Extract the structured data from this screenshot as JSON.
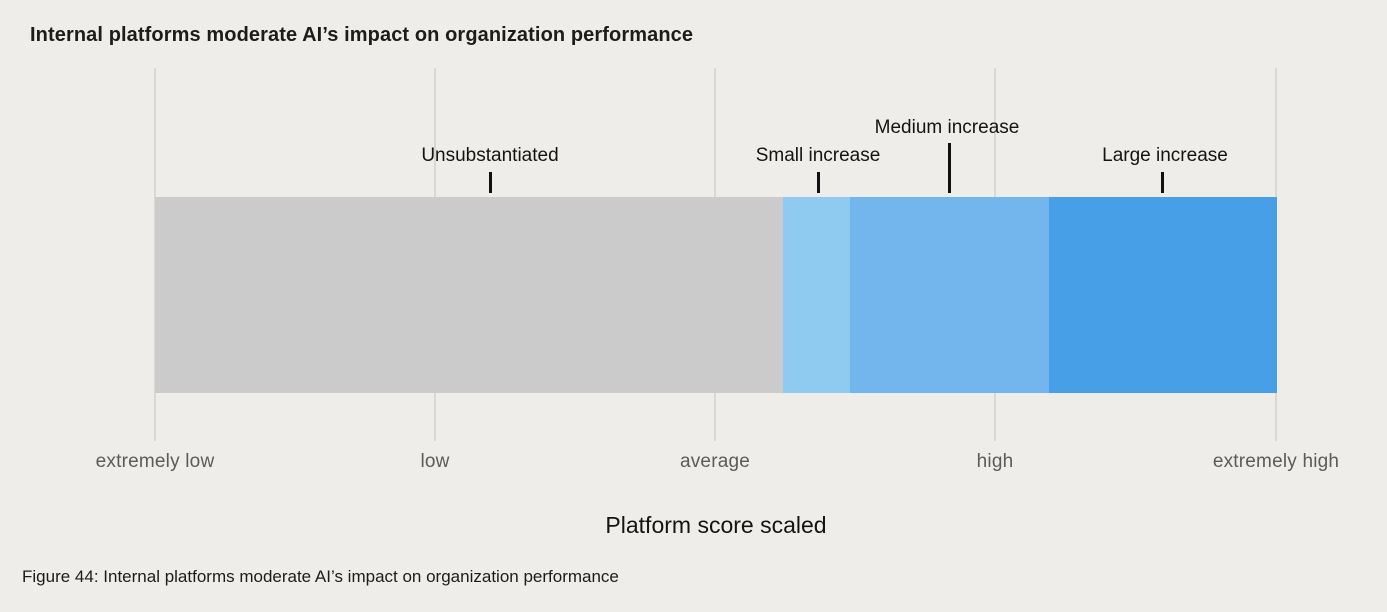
{
  "page": {
    "background": "#EEEDE9"
  },
  "chart": {
    "title": "Internal platforms moderate AI’s impact on organization performance",
    "annotations": [
      {
        "label": "Unsubstantiated"
      },
      {
        "label": "Small increase"
      },
      {
        "label": "Medium increase"
      },
      {
        "label": "Large increase"
      }
    ],
    "x_axis": {
      "title": "Platform score scaled",
      "tick_labels": [
        "extremely low",
        "low",
        "average",
        "high",
        "extremely high"
      ]
    },
    "caption": "Figure 44: Internal platforms moderate AI’s impact on organization performance"
  },
  "chart_data": {
    "type": "bar",
    "subtype": "single horizontal segmented scale bar",
    "title": "Internal platforms moderate AI’s impact on organization performance",
    "xlabel": "Platform score scaled",
    "ylabel": "",
    "x_tick_labels": [
      "extremely low",
      "low",
      "average",
      "high",
      "extremely high"
    ],
    "x_axis_span_ticks": [
      0,
      4
    ],
    "bar_span_ticks": [
      0,
      4
    ],
    "segments": [
      {
        "label": "Unsubstantiated",
        "from_tick": 0.0,
        "to_tick": 2.24,
        "fraction_of_bar": 0.56,
        "color": "#CBCBCB",
        "pointer": "short tick above segment center"
      },
      {
        "label": "Small increase",
        "from_tick": 2.24,
        "to_tick": 2.48,
        "fraction_of_bar": 0.06,
        "color": "#8FCAF1",
        "pointer": "short tick above segment center"
      },
      {
        "label": "Medium increase",
        "from_tick": 2.48,
        "to_tick": 3.19,
        "fraction_of_bar": 0.177,
        "color": "#73B6ED",
        "pointer": "tall tick above segment center"
      },
      {
        "label": "Large increase",
        "from_tick": 3.19,
        "to_tick": 4.0,
        "fraction_of_bar": 0.203,
        "color": "#469FE7",
        "pointer": "short tick above segment center"
      }
    ],
    "grid": "vertical gridline at each x tick, spanning above and below the bar",
    "legend_position": "none",
    "caption": "Figure 44: Internal platforms moderate AI’s impact on organization performance"
  }
}
